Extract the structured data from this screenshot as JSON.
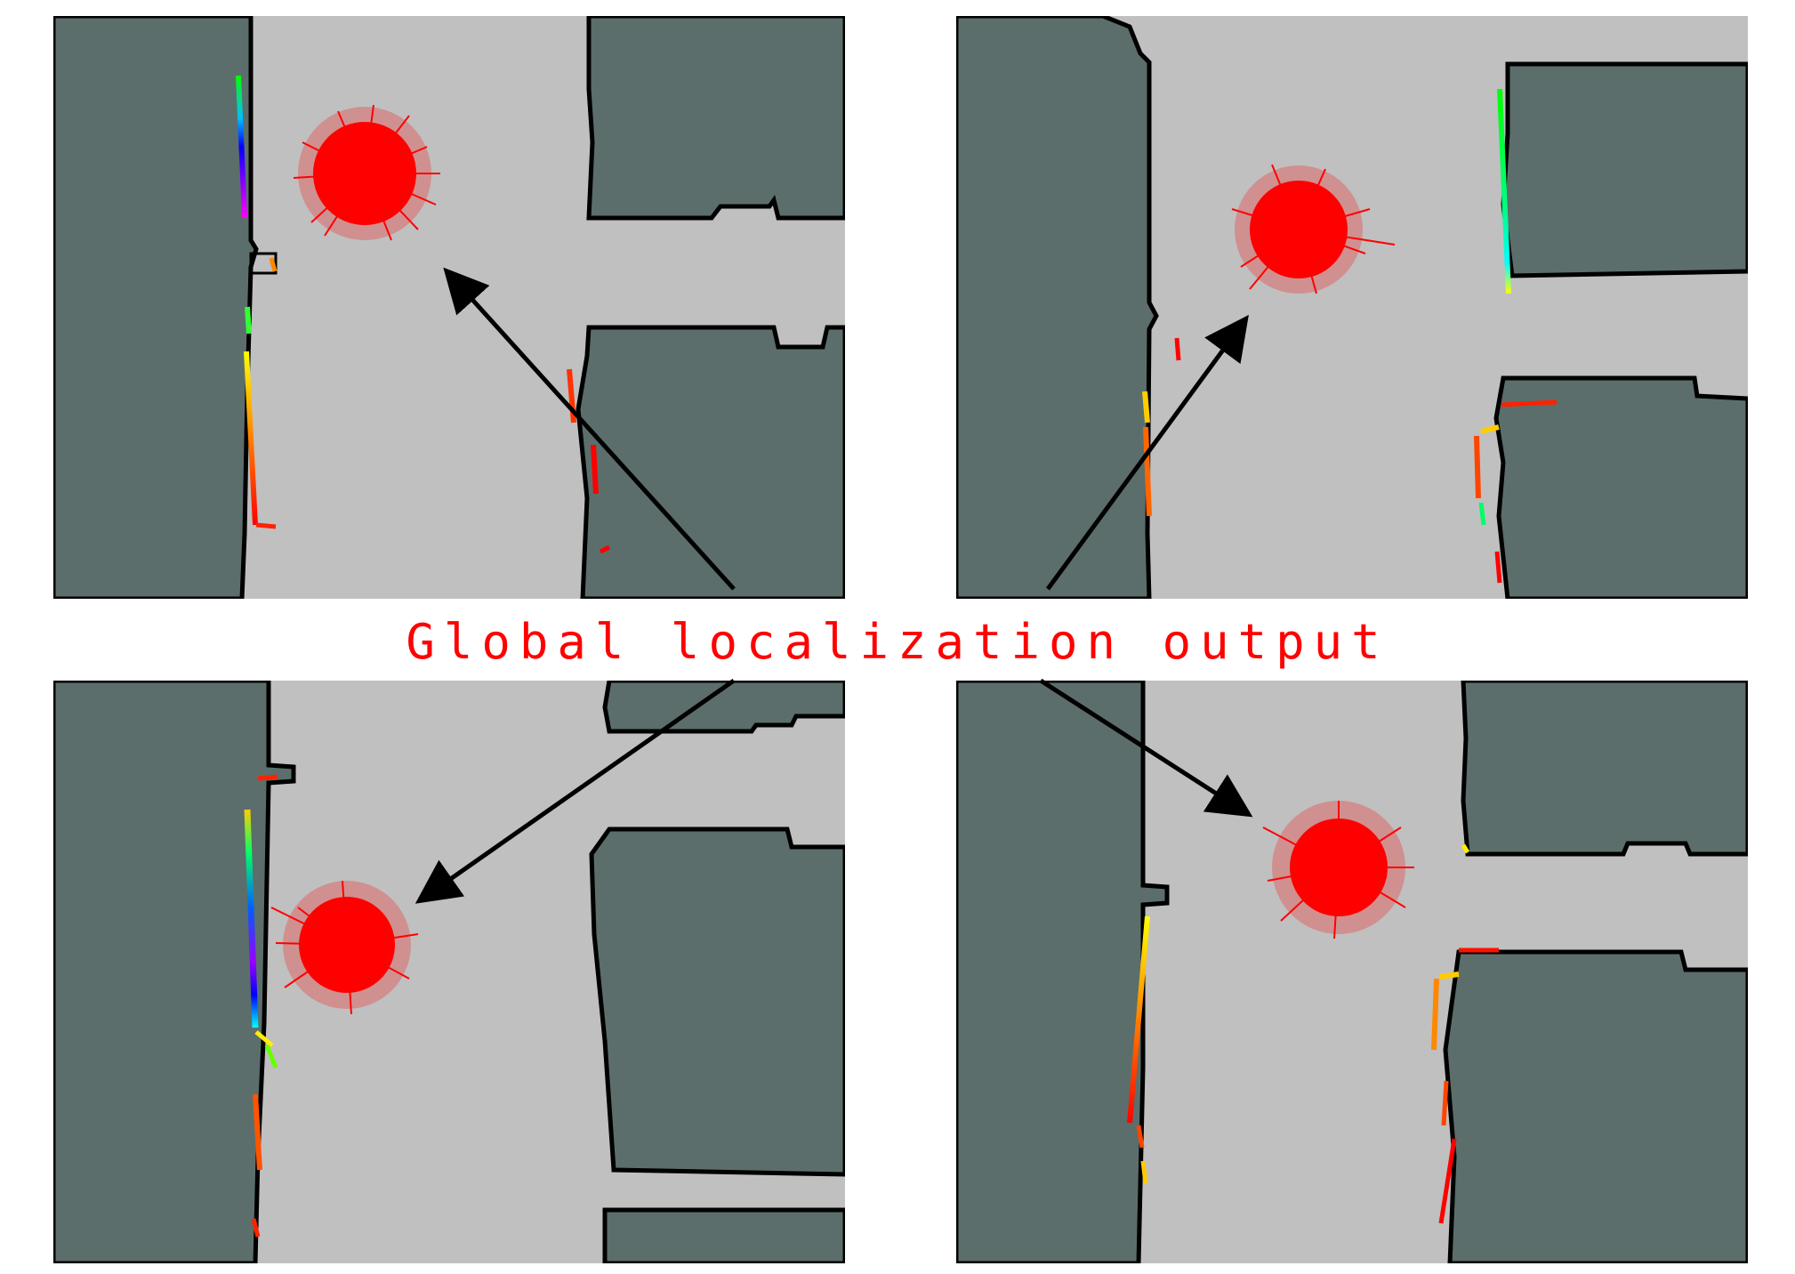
{
  "figure": {
    "caption": "Global localization output",
    "panel_count": 4,
    "panels": [
      {
        "position": "top-left",
        "content": "occupancy-grid map with particle cloud and laser scan"
      },
      {
        "position": "top-right",
        "content": "occupancy-grid map with particle cloud and laser scan"
      },
      {
        "position": "bottom-left",
        "content": "occupancy-grid map with particle cloud and laser scan"
      },
      {
        "position": "bottom-right",
        "content": "occupancy-grid map with particle cloud and laser scan"
      }
    ]
  },
  "colors": {
    "free_space": "#c0c0c0",
    "obstacle": "#5b6e6b",
    "wall_edge": "#000000",
    "particles": "#ff0000",
    "caption": "#ff0000",
    "arrow": "#000000"
  }
}
